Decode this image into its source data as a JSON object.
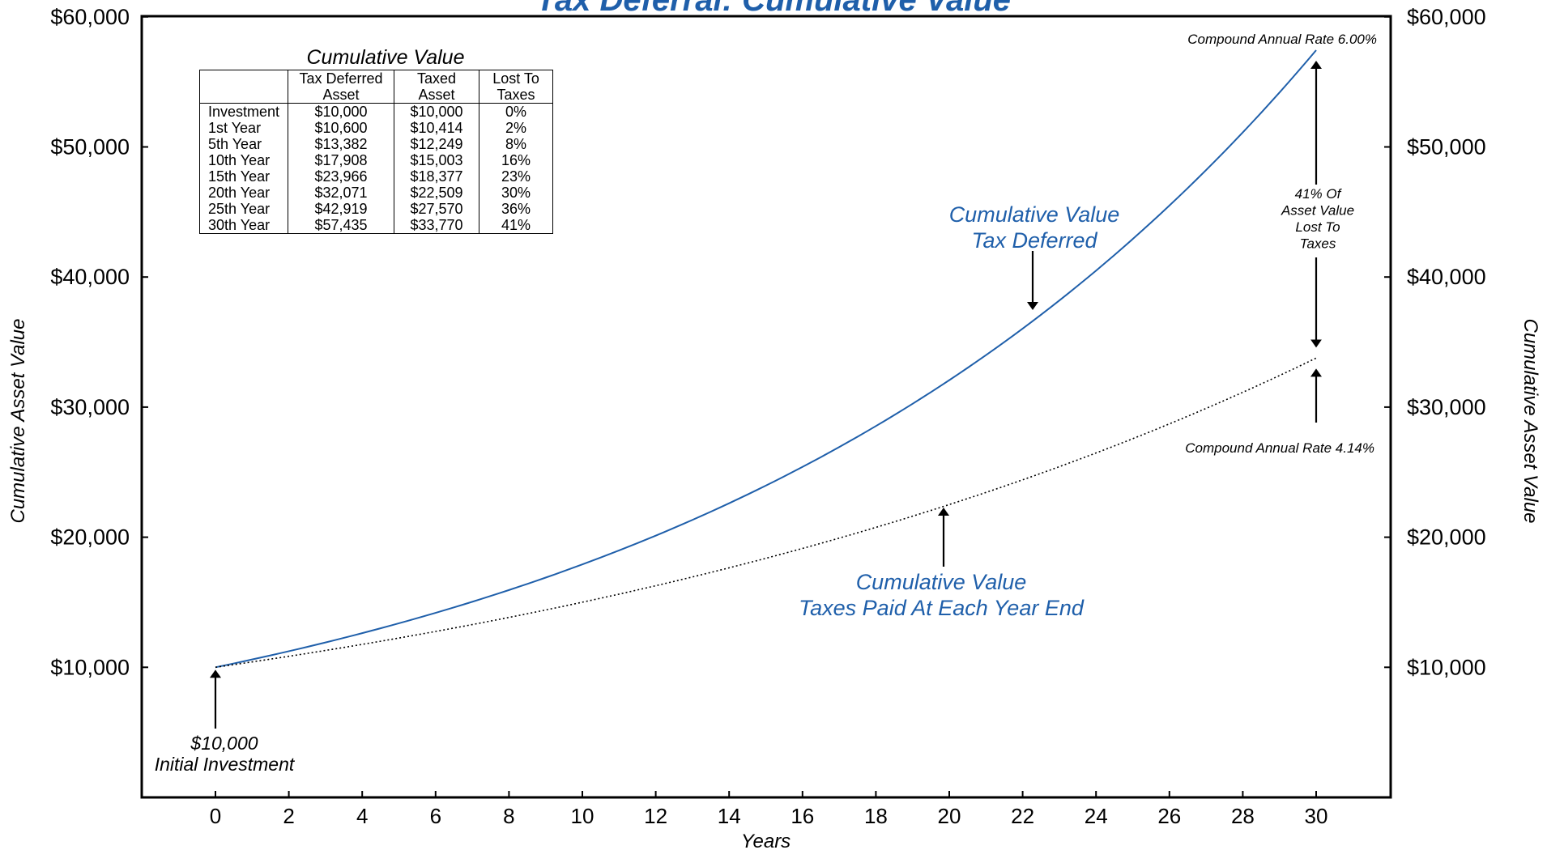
{
  "chart_data": {
    "type": "line",
    "title": "Tax Deferral: Cumulative Value",
    "xlabel": "Years",
    "ylabel_left": "Cumulative Asset Value",
    "ylabel_right": "Cumulative Asset Value",
    "xlim": [
      -2,
      31.5
    ],
    "ylim": [
      0,
      60000
    ],
    "x_ticks": [
      0,
      2,
      4,
      6,
      8,
      10,
      12,
      14,
      16,
      18,
      20,
      22,
      24,
      26,
      28,
      30
    ],
    "y_ticks": [
      10000,
      20000,
      30000,
      40000,
      50000,
      60000
    ],
    "y_tick_labels": [
      "$10,000",
      "$20,000",
      "$30,000",
      "$40,000",
      "$50,000",
      "$60,000"
    ],
    "grid": false,
    "series": [
      {
        "name": "Cumulative Value Tax Deferred",
        "label_lines": [
          "Cumulative Value",
          "Tax Deferred"
        ],
        "rate": 0.06,
        "style": "solid",
        "color": "#1f5faa",
        "x": [
          0,
          1,
          5,
          10,
          15,
          20,
          25,
          30
        ],
        "values": [
          10000,
          10600,
          13382,
          17908,
          23966,
          32071,
          42919,
          57435
        ]
      },
      {
        "name": "Cumulative Value Taxes Paid At Each Year End",
        "label_lines": [
          "Cumulative Value",
          "Taxes Paid At Each Year End"
        ],
        "rate": 0.0414,
        "style": "dotted",
        "color": "#000000",
        "x": [
          0,
          1,
          5,
          10,
          15,
          20,
          25,
          30
        ],
        "values": [
          10000,
          10414,
          12249,
          15003,
          18377,
          22509,
          27570,
          33770
        ]
      }
    ],
    "annotations": {
      "rate_top": "Compound Annual Rate 6.00%",
      "rate_bottom": "Compound Annual Rate 4.14%",
      "lost_lines": [
        "41% Of",
        "Asset Value",
        "Lost To",
        "Taxes"
      ],
      "initial_lines": [
        "$10,000",
        "Initial Investment"
      ]
    },
    "table": {
      "title": "Cumulative Value",
      "headers": [
        [
          "",
          "Tax Deferred",
          "Taxed",
          "Lost To"
        ],
        [
          "",
          "Asset",
          "Asset",
          "Taxes"
        ]
      ],
      "rows": [
        [
          "Investment",
          "$10,000",
          "$10,000",
          "0%"
        ],
        [
          "1st Year",
          "$10,600",
          "$10,414",
          "2%"
        ],
        [
          "5th Year",
          "$13,382",
          "$12,249",
          "8%"
        ],
        [
          "10th Year",
          "$17,908",
          "$15,003",
          "16%"
        ],
        [
          "15th Year",
          "$23,966",
          "$18,377",
          "23%"
        ],
        [
          "20th Year",
          "$32,071",
          "$22,509",
          "30%"
        ],
        [
          "25th Year",
          "$42,919",
          "$27,570",
          "36%"
        ],
        [
          "30th Year",
          "$57,435",
          "$33,770",
          "41%"
        ]
      ]
    }
  }
}
